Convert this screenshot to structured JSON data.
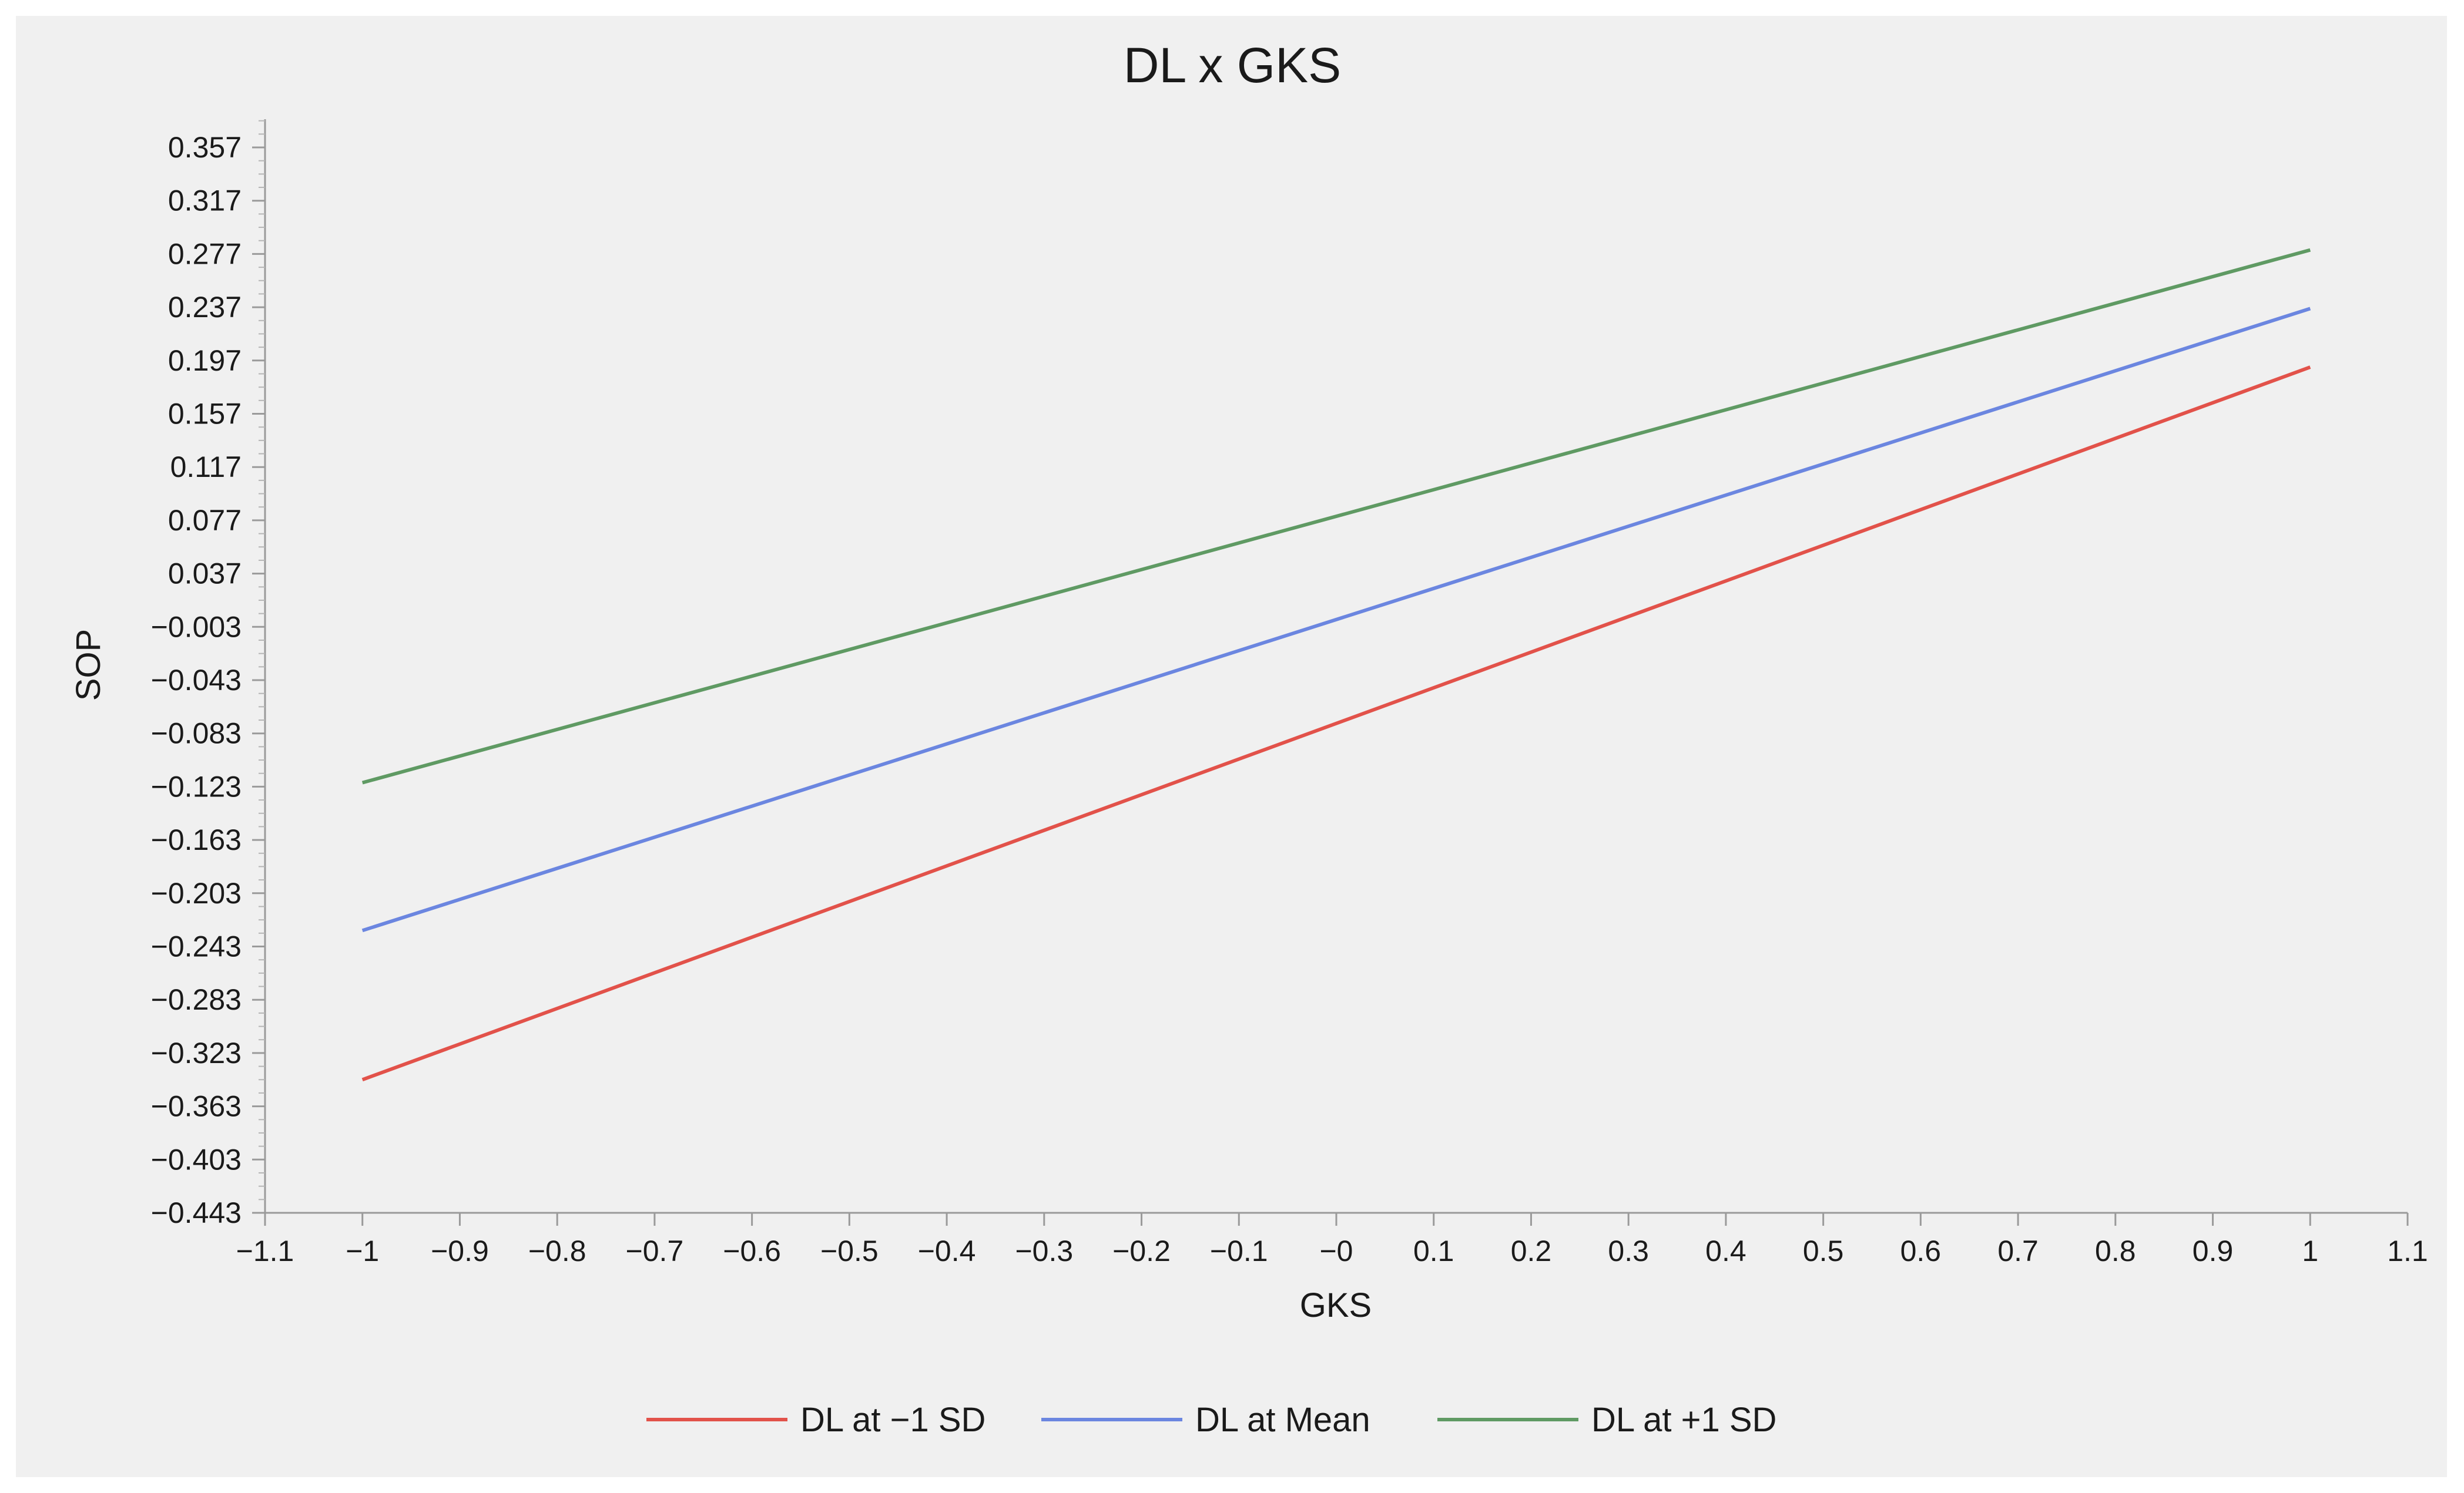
{
  "chart_data": {
    "type": "line",
    "title": "DL x GKS",
    "xlabel": "GKS",
    "ylabel": "SOP",
    "xlim": [
      -1.1,
      1.1
    ],
    "ylim": [
      -0.443,
      0.377
    ],
    "x_ticks": [
      -1.1,
      -1,
      -0.9,
      -0.8,
      -0.7,
      -0.6,
      -0.5,
      -0.4,
      -0.3,
      -0.2,
      -0.1,
      0,
      0.1,
      0.2,
      0.3,
      0.4,
      0.5,
      0.6,
      0.7,
      0.8,
      0.9,
      1,
      1.1
    ],
    "x_tick_labels": [
      "−1.1",
      "−1",
      "−0.9",
      "−0.8",
      "−0.7",
      "−0.6",
      "−0.5",
      "−0.4",
      "−0.3",
      "−0.2",
      "−0.1",
      "−0",
      "0.1",
      "0.2",
      "0.3",
      "0.4",
      "0.5",
      "0.6",
      "0.7",
      "0.8",
      "0.9",
      "1",
      "1.1"
    ],
    "y_ticks": [
      0.357,
      0.317,
      0.277,
      0.237,
      0.197,
      0.157,
      0.117,
      0.077,
      0.037,
      -0.003,
      -0.043,
      -0.083,
      -0.123,
      -0.163,
      -0.203,
      -0.243,
      -0.283,
      -0.323,
      -0.363,
      -0.403,
      -0.443
    ],
    "y_tick_labels": [
      "0.357",
      "0.317",
      "0.277",
      "0.237",
      "0.197",
      "0.157",
      "0.117",
      "0.077",
      "0.037",
      "−0.003",
      "−0.043",
      "−0.083",
      "−0.123",
      "−0.163",
      "−0.203",
      "−0.243",
      "−0.283",
      "−0.323",
      "−0.363",
      "−0.403",
      "−0.443"
    ],
    "grid": false,
    "legend_position": "bottom",
    "series": [
      {
        "name": "DL at −1 SD",
        "color": "#e2524a",
        "x": [
          -1,
          1
        ],
        "y": [
          -0.343,
          0.192
        ]
      },
      {
        "name": "DL at Mean",
        "color": "#6b86e0",
        "x": [
          -1,
          1
        ],
        "y": [
          -0.231,
          0.236
        ]
      },
      {
        "name": "DL at +1 SD",
        "color": "#5f9a63",
        "x": [
          -1,
          1
        ],
        "y": [
          -0.12,
          0.28
        ]
      }
    ]
  }
}
